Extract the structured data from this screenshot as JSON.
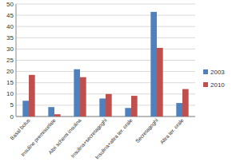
{
  "chart_data": {
    "type": "bar",
    "categories": [
      "Basal bolus",
      "Insuline premiscelate",
      "Altri schemi insulina",
      "Insulina+secretagoghi",
      "Insulina+altra ter. orale",
      "Secretagoghi",
      "Altra ter. orale"
    ],
    "series": [
      {
        "name": "2003",
        "color": "#4f81bd",
        "values": [
          7,
          4.2,
          21,
          8,
          3.8,
          46.5,
          6
        ]
      },
      {
        "name": "2010",
        "color": "#c0504d",
        "values": [
          18.5,
          1,
          17.5,
          10,
          9.2,
          30.5,
          12.2
        ]
      }
    ],
    "ylim": [
      0,
      50
    ],
    "yticks": [
      0,
      5,
      10,
      15,
      20,
      25,
      30,
      35,
      40,
      45,
      50
    ],
    "grid": true,
    "legend": "right"
  }
}
